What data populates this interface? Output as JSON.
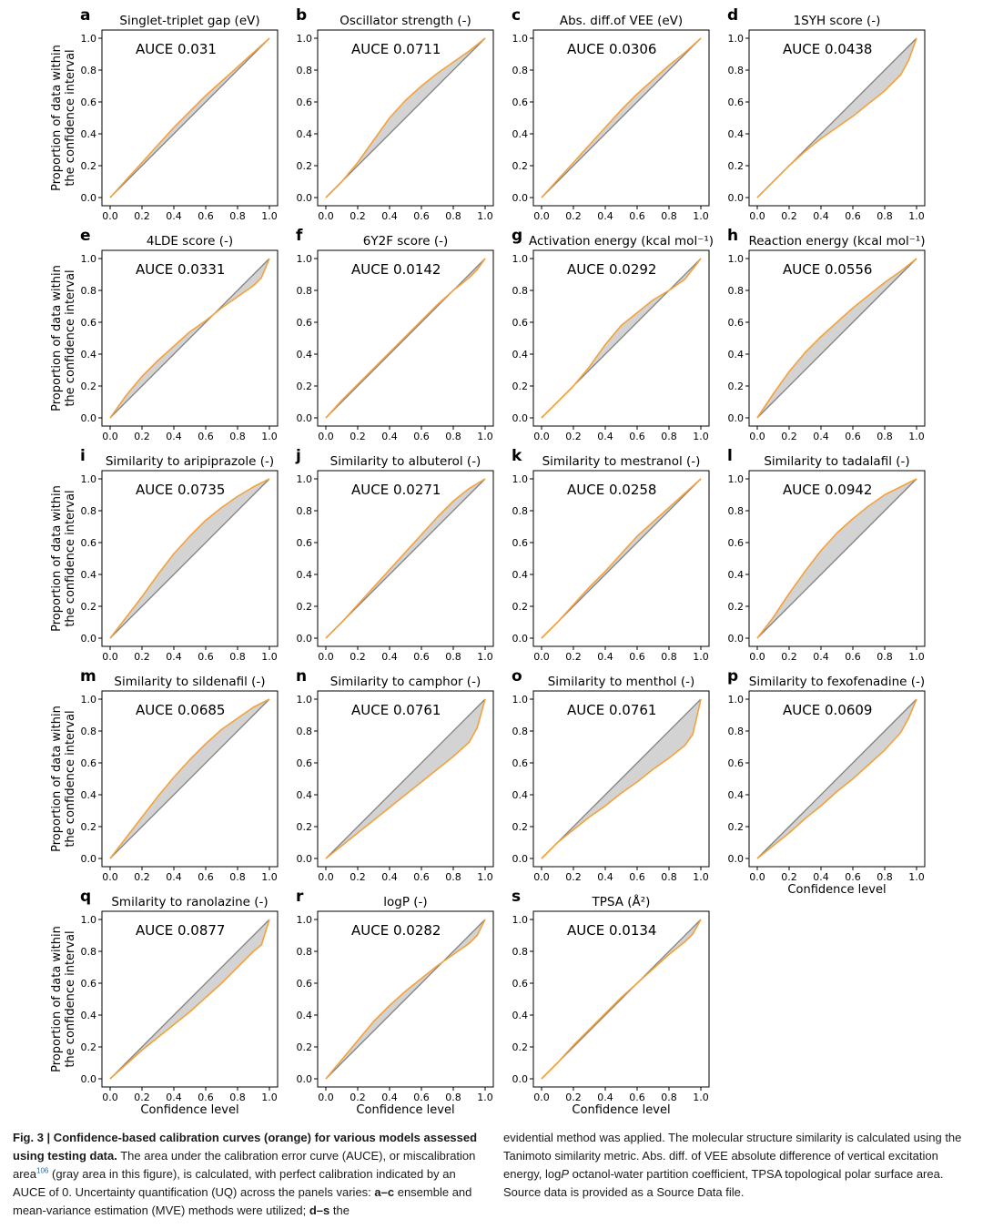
{
  "panel_common": {
    "ylabel_line1": "Proportion of data within",
    "ylabel_line2": "the confidence interval",
    "xlabel": "Confidence level",
    "auce_prefix": "AUCE",
    "tick_labels": [
      "0.0",
      "0.2",
      "0.4",
      "0.6",
      "0.8",
      "1.0"
    ]
  },
  "colors": {
    "calibration_curve": "#f5a13a",
    "ideal_line": "#7f7f7f",
    "miscalibration_area": "#d3d3d3"
  },
  "chart_data": [
    {
      "type": "line",
      "letter": "a",
      "title": "Singlet-triplet gap (eV)",
      "auce": "0.031",
      "xlabel": "",
      "ylabel": "Proportion of data within the confidence interval",
      "xlim": [
        0,
        1
      ],
      "ylim": [
        0,
        1
      ],
      "x": [
        0.0,
        0.1,
        0.2,
        0.3,
        0.4,
        0.5,
        0.6,
        0.7,
        0.8,
        0.9,
        1.0
      ],
      "y": [
        0.0,
        0.11,
        0.22,
        0.33,
        0.44,
        0.54,
        0.64,
        0.73,
        0.82,
        0.91,
        1.0
      ]
    },
    {
      "type": "line",
      "letter": "b",
      "title": "Oscillator strength (-)",
      "auce": "0.0711",
      "xlabel": "",
      "ylabel": "",
      "xlim": [
        0,
        1
      ],
      "ylim": [
        0,
        1
      ],
      "x": [
        0.0,
        0.1,
        0.2,
        0.3,
        0.4,
        0.5,
        0.6,
        0.7,
        0.8,
        0.9,
        1.0
      ],
      "y": [
        0.0,
        0.1,
        0.22,
        0.36,
        0.5,
        0.61,
        0.7,
        0.78,
        0.85,
        0.92,
        1.0
      ]
    },
    {
      "type": "line",
      "letter": "c",
      "title": "Abs. diff.of VEE (eV)",
      "auce": "0.0306",
      "xlabel": "",
      "ylabel": "",
      "xlim": [
        0,
        1
      ],
      "ylim": [
        0,
        1
      ],
      "x": [
        0.0,
        0.1,
        0.2,
        0.3,
        0.4,
        0.5,
        0.6,
        0.7,
        0.8,
        0.9,
        1.0
      ],
      "y": [
        0.0,
        0.11,
        0.22,
        0.33,
        0.44,
        0.55,
        0.65,
        0.74,
        0.83,
        0.91,
        1.0
      ]
    },
    {
      "type": "line",
      "letter": "d",
      "title": "1SYH score (-)",
      "auce": "0.0438",
      "xlabel": "",
      "ylabel": "",
      "xlim": [
        0,
        1
      ],
      "ylim": [
        0,
        1
      ],
      "x": [
        0.0,
        0.1,
        0.2,
        0.3,
        0.4,
        0.5,
        0.6,
        0.7,
        0.8,
        0.9,
        0.95,
        1.0
      ],
      "y": [
        0.0,
        0.1,
        0.2,
        0.29,
        0.37,
        0.44,
        0.51,
        0.59,
        0.67,
        0.77,
        0.86,
        1.0
      ]
    },
    {
      "type": "line",
      "letter": "e",
      "title": "4LDE score (-)",
      "auce": "0.0331",
      "xlabel": "",
      "ylabel": "Proportion of data within the confidence interval",
      "xlim": [
        0,
        1
      ],
      "ylim": [
        0,
        1
      ],
      "x": [
        0.0,
        0.1,
        0.2,
        0.3,
        0.4,
        0.5,
        0.6,
        0.7,
        0.8,
        0.9,
        0.95,
        1.0
      ],
      "y": [
        0.0,
        0.14,
        0.26,
        0.36,
        0.45,
        0.54,
        0.61,
        0.69,
        0.76,
        0.83,
        0.88,
        1.0
      ]
    },
    {
      "type": "line",
      "letter": "f",
      "title": "6Y2F score (-)",
      "auce": "0.0142",
      "xlabel": "",
      "ylabel": "",
      "xlim": [
        0,
        1
      ],
      "ylim": [
        0,
        1
      ],
      "x": [
        0.0,
        0.1,
        0.2,
        0.3,
        0.4,
        0.5,
        0.6,
        0.7,
        0.8,
        0.9,
        0.95,
        1.0
      ],
      "y": [
        0.0,
        0.11,
        0.21,
        0.31,
        0.41,
        0.51,
        0.61,
        0.71,
        0.8,
        0.88,
        0.93,
        1.0
      ]
    },
    {
      "type": "line",
      "letter": "g",
      "title": "Activation energy (kcal mol⁻¹)",
      "auce": "0.0292",
      "xlabel": "",
      "ylabel": "",
      "xlim": [
        0,
        1
      ],
      "ylim": [
        0,
        1
      ],
      "x": [
        0.0,
        0.1,
        0.2,
        0.3,
        0.4,
        0.5,
        0.6,
        0.7,
        0.8,
        0.9,
        1.0
      ],
      "y": [
        0.0,
        0.1,
        0.2,
        0.32,
        0.46,
        0.58,
        0.66,
        0.74,
        0.8,
        0.87,
        1.0
      ]
    },
    {
      "type": "line",
      "letter": "h",
      "title": "Reaction energy (kcal mol⁻¹)",
      "auce": "0.0556",
      "xlabel": "",
      "ylabel": "",
      "xlim": [
        0,
        1
      ],
      "ylim": [
        0,
        1
      ],
      "x": [
        0.0,
        0.1,
        0.2,
        0.3,
        0.4,
        0.5,
        0.6,
        0.7,
        0.8,
        0.9,
        1.0
      ],
      "y": [
        0.0,
        0.15,
        0.29,
        0.41,
        0.51,
        0.6,
        0.69,
        0.77,
        0.85,
        0.92,
        1.0
      ]
    },
    {
      "type": "line",
      "letter": "i",
      "title": "Similarity to aripiprazole (-)",
      "auce": "0.0735",
      "xlabel": "",
      "ylabel": "Proportion of data within the confidence interval",
      "xlim": [
        0,
        1
      ],
      "ylim": [
        0,
        1
      ],
      "x": [
        0.0,
        0.1,
        0.2,
        0.3,
        0.4,
        0.5,
        0.6,
        0.7,
        0.8,
        0.9,
        1.0
      ],
      "y": [
        0.0,
        0.13,
        0.26,
        0.4,
        0.53,
        0.64,
        0.74,
        0.82,
        0.89,
        0.95,
        1.0
      ]
    },
    {
      "type": "line",
      "letter": "j",
      "title": "Similarity to albuterol (-)",
      "auce": "0.0271",
      "xlabel": "",
      "ylabel": "",
      "xlim": [
        0,
        1
      ],
      "ylim": [
        0,
        1
      ],
      "x": [
        0.0,
        0.1,
        0.2,
        0.3,
        0.4,
        0.5,
        0.6,
        0.7,
        0.8,
        0.9,
        1.0
      ],
      "y": [
        0.0,
        0.1,
        0.21,
        0.32,
        0.43,
        0.54,
        0.65,
        0.76,
        0.86,
        0.94,
        1.0
      ]
    },
    {
      "type": "line",
      "letter": "k",
      "title": "Similarity to mestranol (-)",
      "auce": "0.0258",
      "xlabel": "",
      "ylabel": "",
      "xlim": [
        0,
        1
      ],
      "ylim": [
        0,
        1
      ],
      "x": [
        0.0,
        0.1,
        0.2,
        0.3,
        0.4,
        0.5,
        0.6,
        0.7,
        0.8,
        0.9,
        1.0
      ],
      "y": [
        0.0,
        0.1,
        0.21,
        0.32,
        0.42,
        0.53,
        0.64,
        0.73,
        0.82,
        0.91,
        1.0
      ]
    },
    {
      "type": "line",
      "letter": "l",
      "title": "Similarity to tadalafil (-)",
      "auce": "0.0942",
      "xlabel": "",
      "ylabel": "",
      "xlim": [
        0,
        1
      ],
      "ylim": [
        0,
        1
      ],
      "x": [
        0.0,
        0.1,
        0.2,
        0.3,
        0.4,
        0.5,
        0.6,
        0.7,
        0.8,
        0.9,
        1.0
      ],
      "y": [
        0.0,
        0.13,
        0.28,
        0.42,
        0.55,
        0.66,
        0.75,
        0.83,
        0.9,
        0.95,
        1.0
      ]
    },
    {
      "type": "line",
      "letter": "m",
      "title": "Similarity to sildenafil (-)",
      "auce": "0.0685",
      "xlabel": "",
      "ylabel": "Proportion of data within the confidence interval",
      "xlim": [
        0,
        1
      ],
      "ylim": [
        0,
        1
      ],
      "x": [
        0.0,
        0.1,
        0.2,
        0.3,
        0.4,
        0.5,
        0.6,
        0.7,
        0.8,
        0.9,
        1.0
      ],
      "y": [
        0.0,
        0.13,
        0.26,
        0.39,
        0.51,
        0.62,
        0.72,
        0.81,
        0.88,
        0.95,
        1.0
      ]
    },
    {
      "type": "line",
      "letter": "n",
      "title": "Similarity to camphor (-)",
      "auce": "0.0761",
      "xlabel": "",
      "ylabel": "",
      "xlim": [
        0,
        1
      ],
      "ylim": [
        0,
        1
      ],
      "x": [
        0.0,
        0.1,
        0.2,
        0.3,
        0.4,
        0.5,
        0.6,
        0.7,
        0.8,
        0.9,
        0.95,
        1.0
      ],
      "y": [
        0.0,
        0.08,
        0.16,
        0.24,
        0.32,
        0.4,
        0.48,
        0.56,
        0.64,
        0.73,
        0.82,
        1.0
      ]
    },
    {
      "type": "line",
      "letter": "o",
      "title": "Similarity to menthol (-)",
      "auce": "0.0761",
      "xlabel": "",
      "ylabel": "",
      "xlim": [
        0,
        1
      ],
      "ylim": [
        0,
        1
      ],
      "x": [
        0.0,
        0.1,
        0.2,
        0.3,
        0.4,
        0.5,
        0.6,
        0.7,
        0.8,
        0.9,
        0.95,
        1.0
      ],
      "y": [
        0.0,
        0.1,
        0.18,
        0.26,
        0.33,
        0.41,
        0.48,
        0.56,
        0.63,
        0.71,
        0.78,
        1.0
      ]
    },
    {
      "type": "line",
      "letter": "p",
      "title": "Similarity to fexofenadine (-)",
      "auce": "0.0609",
      "xlabel": "Confidence level",
      "ylabel": "",
      "xlim": [
        0,
        1
      ],
      "ylim": [
        0,
        1
      ],
      "x": [
        0.0,
        0.1,
        0.2,
        0.3,
        0.4,
        0.5,
        0.6,
        0.7,
        0.8,
        0.9,
        0.95,
        1.0
      ],
      "y": [
        0.0,
        0.08,
        0.16,
        0.25,
        0.33,
        0.42,
        0.5,
        0.59,
        0.68,
        0.79,
        0.88,
        1.0
      ]
    },
    {
      "type": "line",
      "letter": "q",
      "title": "Smilarity to ranolazine (-)",
      "auce": "0.0877",
      "xlabel": "Confidence level",
      "ylabel": "Proportion of data within the confidence interval",
      "xlim": [
        0,
        1
      ],
      "ylim": [
        0,
        1
      ],
      "x": [
        0.0,
        0.1,
        0.2,
        0.3,
        0.4,
        0.5,
        0.6,
        0.7,
        0.8,
        0.9,
        0.95,
        1.0
      ],
      "y": [
        0.0,
        0.09,
        0.18,
        0.26,
        0.34,
        0.42,
        0.51,
        0.6,
        0.7,
        0.8,
        0.84,
        1.0
      ]
    },
    {
      "type": "line",
      "letter": "r",
      "title": "logP (-)",
      "auce": "0.0282",
      "xlabel": "Confidence level",
      "ylabel": "",
      "xlim": [
        0,
        1
      ],
      "ylim": [
        0,
        1
      ],
      "x": [
        0.0,
        0.1,
        0.2,
        0.3,
        0.4,
        0.5,
        0.6,
        0.7,
        0.8,
        0.9,
        0.95,
        1.0
      ],
      "y": [
        0.0,
        0.12,
        0.24,
        0.36,
        0.46,
        0.55,
        0.63,
        0.71,
        0.78,
        0.85,
        0.9,
        1.0
      ]
    },
    {
      "type": "line",
      "letter": "s",
      "title": "TPSA (Å²)",
      "auce": "0.0134",
      "xlabel": "Confidence level",
      "ylabel": "",
      "xlim": [
        0,
        1
      ],
      "ylim": [
        0,
        1
      ],
      "x": [
        0.0,
        0.1,
        0.2,
        0.3,
        0.4,
        0.5,
        0.6,
        0.7,
        0.8,
        0.9,
        0.95,
        1.0
      ],
      "y": [
        0.0,
        0.1,
        0.21,
        0.31,
        0.41,
        0.51,
        0.6,
        0.69,
        0.78,
        0.86,
        0.91,
        1.0
      ]
    }
  ],
  "caption": {
    "label": "Fig. 3 | Confidence-based calibration curves (orange) for various models assessed using testing data.",
    "text1": " The area under the calibration error curve (AUCE), or miscalibration area",
    "ref": "106",
    "text2": " (gray area in this figure), is calculated, with perfect calibration indicated by an AUCE of 0. Uncertainty quantification (UQ) across the panels varies: ",
    "range1": "a–c",
    "text3": " ensemble and mean-variance estimation (MVE) methods were utilized; ",
    "range2": "d–s",
    "text4": " the evidential method was applied. The molecular structure similarity is calculated using the Tanimoto similarity metric. Abs. diff. of VEE absolute difference of vertical excitation energy, log",
    "ital": "P",
    "text5": " octanol-water partition coefficient, TPSA topological polar surface area. Source data is provided as a Source Data file."
  }
}
